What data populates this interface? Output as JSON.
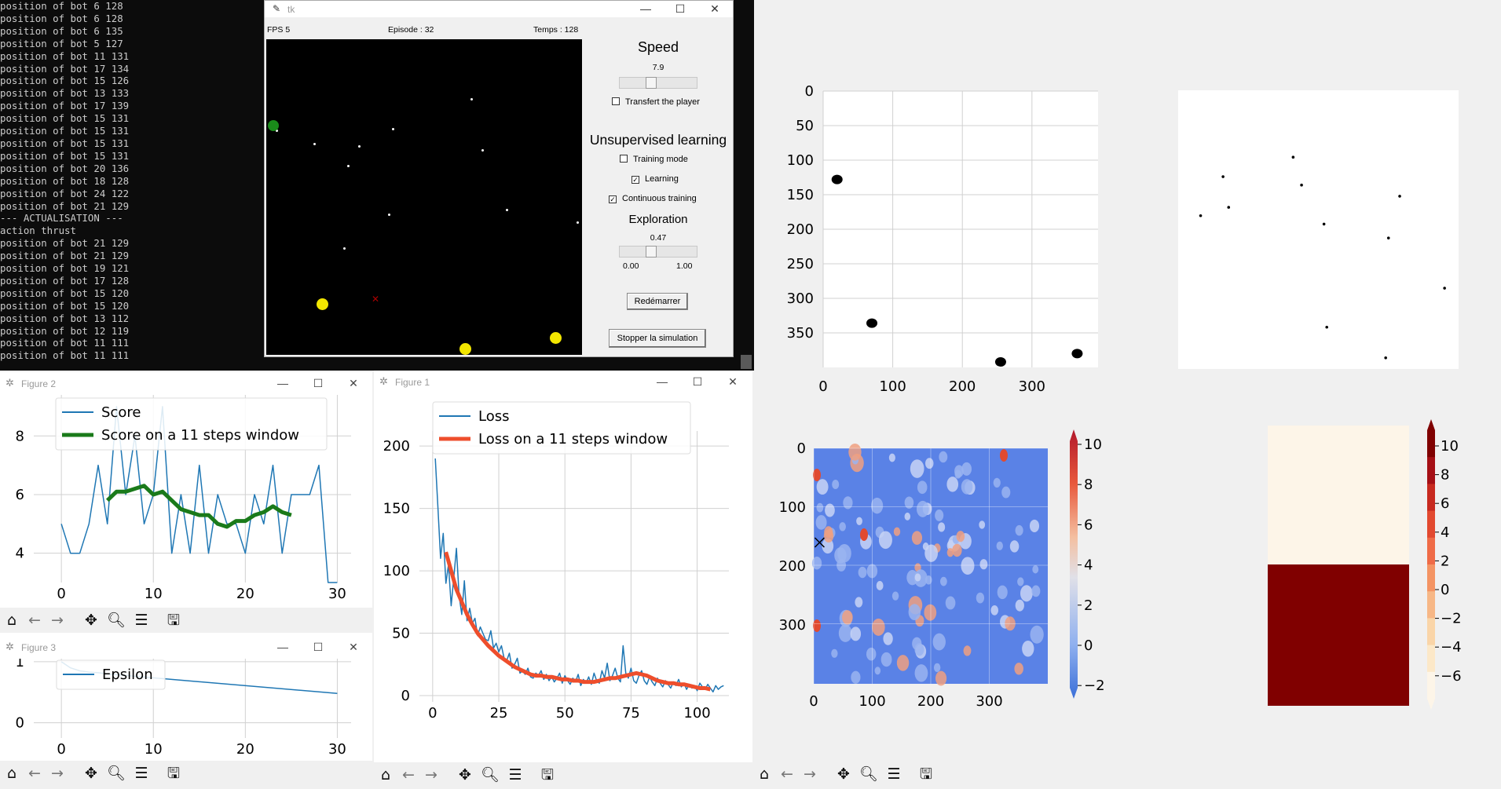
{
  "console": {
    "lines": [
      "position of bot 6 128",
      "position of bot 6 128",
      "position of bot 6 135",
      "position of bot 5 127",
      "position of bot 11 131",
      "position of bot 17 134",
      "position of bot 15 126",
      "position of bot 13 133",
      "position of bot 17 139",
      "position of bot 15 131",
      "position of bot 15 131",
      "position of bot 15 131",
      "position of bot 15 131",
      "position of bot 20 136",
      "position of bot 18 128",
      "position of bot 24 122",
      "position of bot 21 129",
      "--- ACTUALISATION ---",
      "action thrust",
      "position of bot 21 129",
      "position of bot 21 129",
      "position of bot 19 121",
      "position of bot 17 128",
      "position of bot 15 120",
      "position of bot 15 120",
      "position of bot 13 112",
      "position of bot 12 119",
      "position of bot 11 111",
      "position of bot 11 111"
    ]
  },
  "tk": {
    "title": "tk",
    "fps": "FPS 5",
    "episode": "Episode : 32",
    "temps": "Temps : 128",
    "speed_title": "Speed",
    "speed_value": "7.9",
    "transfert_label": "Transfert the player",
    "transfert_checked": false,
    "unsup_title": "Unsupervised learning",
    "training_label": "Training mode",
    "training_checked": false,
    "learning_label": "Learning",
    "learning_checked": true,
    "continuous_label": "Continuous training",
    "continuous_checked": true,
    "exploration_title": "Exploration",
    "exploration_value": "0.47",
    "exploration_min": "0.00",
    "exploration_max": "1.00",
    "restart_label": "Redémarrer",
    "stop_label": "Stopper la simulation"
  },
  "figures": {
    "figure2_title": "Figure 2",
    "figure3_title": "Figure 3",
    "figure1_title": "Figure 1"
  },
  "chart_data": [
    {
      "id": "score",
      "type": "line",
      "x": [
        0,
        1,
        2,
        3,
        4,
        5,
        6,
        7,
        8,
        9,
        10,
        11,
        12,
        13,
        14,
        15,
        16,
        17,
        18,
        19,
        20,
        21,
        22,
        23,
        24,
        25,
        26,
        27,
        28,
        29,
        30
      ],
      "series": [
        {
          "name": "Score",
          "color": "#1f77b4",
          "values": [
            5,
            4,
            4,
            5,
            7,
            5,
            9,
            6,
            8,
            5,
            6,
            9,
            4,
            6,
            4,
            7,
            4,
            6,
            5,
            5,
            4,
            6,
            5,
            7,
            4,
            6,
            6,
            6,
            7,
            3,
            3
          ]
        },
        {
          "name": "Score on a 11 steps window",
          "color": "#1a7a1a",
          "x": [
            5,
            6,
            7,
            8,
            9,
            10,
            11,
            12,
            13,
            14,
            15,
            16,
            17,
            18,
            19,
            20,
            21,
            22,
            23,
            24,
            25
          ],
          "values": [
            5.8,
            6.1,
            6.1,
            6.2,
            6.3,
            6.0,
            6.1,
            5.8,
            5.5,
            5.4,
            5.3,
            5.3,
            5.0,
            4.9,
            5.1,
            5.1,
            5.3,
            5.4,
            5.6,
            5.4,
            5.3
          ]
        }
      ],
      "xticks": [
        0,
        10,
        20,
        30
      ],
      "yticks": [
        4,
        6,
        8
      ],
      "xlim": [
        -3,
        31.5
      ],
      "ylim": [
        3,
        9.4
      ]
    },
    {
      "id": "epsilon",
      "type": "line",
      "x": [
        0,
        1,
        2,
        3,
        4,
        5,
        30
      ],
      "series": [
        {
          "name": "Epsilon",
          "color": "#1f77b4",
          "values": [
            1,
            0.9,
            0.85,
            0.83,
            0.82,
            0.8,
            0.48
          ]
        }
      ],
      "xticks": [
        0,
        10,
        20,
        30
      ],
      "yticks": [
        0,
        1
      ],
      "xlim": [
        -3,
        31.5
      ],
      "ylim": [
        -0.25,
        1.05
      ]
    },
    {
      "id": "loss",
      "type": "line",
      "series": [
        {
          "name": "Loss",
          "color": "#1f77b4",
          "x": [
            1,
            2,
            3,
            4,
            5,
            6,
            7,
            8,
            9,
            10,
            11,
            12,
            13,
            14,
            15,
            16,
            17,
            18,
            19,
            20,
            21,
            22,
            23,
            24,
            25,
            26,
            27,
            28,
            29,
            30,
            31,
            32,
            33,
            34,
            35,
            36,
            37,
            38,
            39,
            40,
            41,
            42,
            43,
            44,
            45,
            46,
            47,
            48,
            49,
            50,
            51,
            52,
            53,
            54,
            55,
            56,
            57,
            58,
            59,
            60,
            61,
            62,
            63,
            64,
            65,
            66,
            67,
            68,
            69,
            70,
            71,
            72,
            73,
            74,
            75,
            76,
            77,
            78,
            79,
            80,
            81,
            82,
            83,
            84,
            85,
            86,
            87,
            88,
            89,
            90,
            91,
            92,
            93,
            94,
            95,
            96,
            97,
            98,
            99,
            100,
            101,
            102,
            103,
            104,
            105,
            106,
            107,
            108,
            109,
            110
          ],
          "values": [
            190,
            150,
            110,
            130,
            90,
            105,
            72,
            95,
            118,
            80,
            65,
            92,
            60,
            70,
            58,
            62,
            48,
            55,
            50,
            45,
            44,
            52,
            38,
            42,
            35,
            40,
            30,
            28,
            34,
            22,
            25,
            30,
            18,
            20,
            17,
            22,
            15,
            14,
            18,
            16,
            20,
            13,
            17,
            12,
            15,
            11,
            14,
            18,
            10,
            16,
            12,
            9,
            14,
            11,
            17,
            8,
            13,
            10,
            15,
            9,
            18,
            12,
            10,
            20,
            14,
            26,
            12,
            16,
            22,
            14,
            11,
            40,
            18,
            14,
            22,
            12,
            10,
            16,
            20,
            12,
            9,
            15,
            11,
            8,
            14,
            10,
            7,
            12,
            9,
            6,
            11,
            8,
            13,
            7,
            10,
            5,
            9,
            6,
            8,
            4,
            10,
            7,
            5,
            9,
            6,
            3,
            8,
            5,
            7,
            8
          ]
        },
        {
          "name": "Loss on a 11 steps window",
          "color": "#ee4e2c",
          "x": [
            5,
            7,
            9,
            11,
            13,
            15,
            17,
            19,
            21,
            23,
            25,
            27,
            29,
            31,
            33,
            35,
            37,
            39,
            41,
            43,
            45,
            47,
            49,
            51,
            53,
            55,
            57,
            59,
            61,
            63,
            65,
            67,
            69,
            71,
            73,
            75,
            77,
            79,
            81,
            83,
            85,
            87,
            89,
            91,
            93,
            95,
            97,
            99,
            101,
            103,
            105
          ],
          "values": [
            115,
            100,
            85,
            75,
            65,
            57,
            50,
            45,
            40,
            36,
            32,
            29,
            26,
            23,
            21,
            19,
            17,
            16,
            16,
            15,
            15,
            14,
            13,
            13,
            12,
            12,
            11,
            11,
            11,
            12,
            13,
            14,
            14,
            15,
            16,
            17,
            18,
            17,
            16,
            14,
            12,
            11,
            10,
            10,
            9,
            9,
            8,
            7,
            6,
            6,
            5
          ]
        }
      ],
      "xticks": [
        0,
        25,
        50,
        75,
        100
      ],
      "yticks": [
        0,
        50,
        100,
        150,
        200
      ],
      "xlim": [
        -5,
        112
      ],
      "ylim": [
        -5,
        212
      ]
    },
    {
      "id": "positions",
      "type": "scatter",
      "points": [
        [
          20,
          128
        ],
        [
          70,
          336
        ],
        [
          255,
          392
        ],
        [
          365,
          380
        ]
      ],
      "xticks": [
        0,
        100,
        200,
        300
      ],
      "yticks": [
        0,
        50,
        100,
        150,
        200,
        250,
        300,
        350
      ],
      "xlim": [
        0,
        395
      ],
      "ylim": [
        400,
        0
      ]
    },
    {
      "id": "dots",
      "type": "scatter",
      "points": [
        [
          0.08,
          0.45
        ],
        [
          0.16,
          0.31
        ],
        [
          0.18,
          0.42
        ],
        [
          0.41,
          0.24
        ],
        [
          0.44,
          0.34
        ],
        [
          0.52,
          0.48
        ],
        [
          0.75,
          0.53
        ],
        [
          0.79,
          0.38
        ],
        [
          0.95,
          0.71
        ],
        [
          0.53,
          0.85
        ],
        [
          0.74,
          0.96
        ]
      ]
    },
    {
      "id": "heatmap",
      "type": "heatmap",
      "xticks": [
        0,
        100,
        200,
        300
      ],
      "yticks": [
        0,
        100,
        200,
        300
      ],
      "colorbar_ticks": [
        "10",
        "8",
        "6",
        "4",
        "2",
        "0",
        "−2"
      ],
      "marker": [
        10,
        160
      ]
    },
    {
      "id": "two-band",
      "type": "heatmap",
      "rows": [
        "#fdf5e8",
        "#800000"
      ],
      "colorbar_ticks": [
        "10",
        "8",
        "6",
        "4",
        "2",
        "0",
        "−2",
        "−4",
        "−6"
      ]
    }
  ]
}
